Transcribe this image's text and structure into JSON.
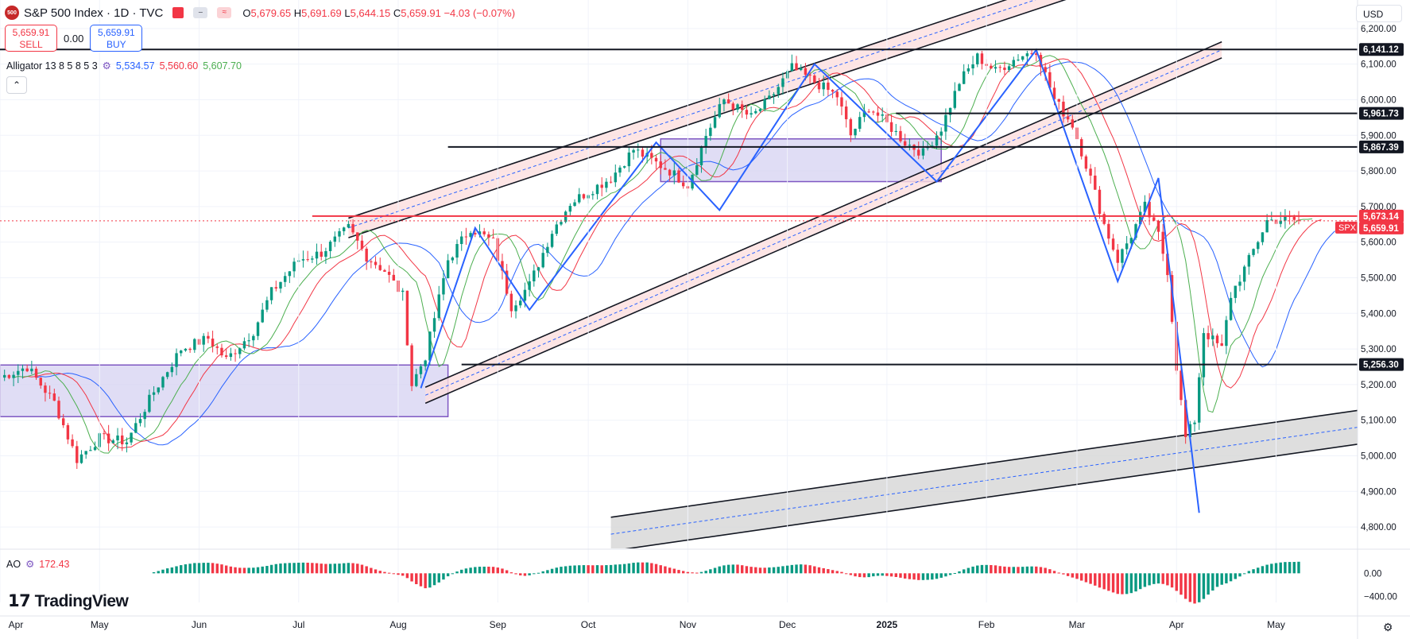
{
  "header": {
    "logo_text": "500",
    "title": "S&P 500 Index · 1D · TVC",
    "ohlc": {
      "o_label": "O",
      "o": "5,679.65",
      "h_label": "H",
      "h": "5,691.69",
      "l_label": "L",
      "l": "5,644.15",
      "c_label": "C",
      "c": "5,659.91",
      "change": "−4.03 (−0.07%)"
    },
    "pill_text": "≈"
  },
  "trade": {
    "sell_price": "5,659.91",
    "sell_label": "SELL",
    "spread": "0.00",
    "buy_price": "5,659.91",
    "buy_label": "BUY"
  },
  "indicators": {
    "alligator": {
      "label": "Alligator 13 8 5 8 5 3",
      "jaw": "5,534.57",
      "teeth": "5,560.60",
      "lips": "5,607.70"
    },
    "ao": {
      "label": "AO",
      "value": "172.43"
    }
  },
  "currency": "USD",
  "branding": "TradingView",
  "colors": {
    "up": "#089981",
    "down": "#f23645",
    "jaw": "#2962ff",
    "teeth": "#f23645",
    "lips": "#4caf50",
    "pattern": "#2962ff",
    "channel_fill": "#fcdede",
    "range_fill": "#d6d1f2",
    "range_border": "#7e57c2"
  },
  "chart_data": {
    "type": "candlestick",
    "title": "S&P 500 Index · 1D · TVC",
    "symbol": "SPX",
    "last_price": 5659.91,
    "ylim": [
      4740,
      6280
    ],
    "y_ticks": [
      4800,
      4900,
      5000,
      5100,
      5200,
      5300,
      5400,
      5500,
      5600,
      5700,
      5800,
      5900,
      6000,
      6100,
      6200
    ],
    "y_tick_labels": [
      "4,800.00",
      "4,900.00",
      "5,000.00",
      "5,100.00",
      "5,200.00",
      "5,300.00",
      "5,400.00",
      "5,500.00",
      "5,600.00",
      "5,700.00",
      "5,800.00",
      "5,900.00",
      "6,000.00",
      "6,100.00",
      "6,200.00"
    ],
    "x_labels": [
      "Apr",
      "May",
      "Jun",
      "Jul",
      "Aug",
      "Sep",
      "Oct",
      "Nov",
      "Dec",
      "2025",
      "Feb",
      "Mar",
      "Apr",
      "May"
    ],
    "x_label_days": [
      0,
      22,
      44,
      66,
      88,
      110,
      130,
      152,
      174,
      196,
      218,
      238,
      260,
      282
    ],
    "total_days": 300,
    "horizontal_levels": [
      {
        "value": 6141.12,
        "label": "6,141.12",
        "from_day": 0
      },
      {
        "value": 5961.73,
        "label": "5,961.73",
        "from_day": 198
      },
      {
        "value": 5867.39,
        "label": "5,867.39",
        "from_day": 99
      },
      {
        "value": 5256.3,
        "label": "5,256.30",
        "from_day": 102
      },
      {
        "value": 5673.14,
        "label": "5,673.14",
        "from_day": 69,
        "color": "red"
      }
    ],
    "last_price_label": "5,659.91",
    "path_anchors": [
      [
        0,
        5220
      ],
      [
        6,
        5250
      ],
      [
        12,
        5150
      ],
      [
        17,
        4990
      ],
      [
        22,
        5050
      ],
      [
        28,
        5040
      ],
      [
        34,
        5180
      ],
      [
        40,
        5300
      ],
      [
        46,
        5330
      ],
      [
        50,
        5270
      ],
      [
        56,
        5350
      ],
      [
        60,
        5460
      ],
      [
        66,
        5550
      ],
      [
        71,
        5570
      ],
      [
        77,
        5640
      ],
      [
        81,
        5560
      ],
      [
        85,
        5520
      ],
      [
        89,
        5450
      ],
      [
        91,
        5200
      ],
      [
        94,
        5280
      ],
      [
        99,
        5550
      ],
      [
        104,
        5640
      ],
      [
        109,
        5600
      ],
      [
        113,
        5420
      ],
      [
        117,
        5480
      ],
      [
        122,
        5630
      ],
      [
        126,
        5710
      ],
      [
        131,
        5750
      ],
      [
        135,
        5780
      ],
      [
        140,
        5860
      ],
      [
        144,
        5830
      ],
      [
        148,
        5800
      ],
      [
        152,
        5760
      ],
      [
        156,
        5900
      ],
      [
        160,
        6000
      ],
      [
        166,
        5950
      ],
      [
        170,
        6000
      ],
      [
        175,
        6090
      ],
      [
        180,
        6050
      ],
      [
        185,
        6010
      ],
      [
        188,
        5900
      ],
      [
        192,
        5980
      ],
      [
        197,
        5920
      ],
      [
        200,
        5880
      ],
      [
        204,
        5850
      ],
      [
        208,
        5920
      ],
      [
        212,
        6050
      ],
      [
        216,
        6120
      ],
      [
        220,
        6080
      ],
      [
        225,
        6120
      ],
      [
        229,
        6140
      ],
      [
        233,
        6000
      ],
      [
        237,
        5930
      ],
      [
        241,
        5780
      ],
      [
        244,
        5650
      ],
      [
        247,
        5550
      ],
      [
        250,
        5620
      ],
      [
        253,
        5700
      ],
      [
        256,
        5620
      ],
      [
        258,
        5520
      ],
      [
        260,
        5250
      ],
      [
        262,
        5050
      ],
      [
        264,
        5100
      ],
      [
        266,
        5350
      ],
      [
        270,
        5300
      ],
      [
        272,
        5450
      ],
      [
        276,
        5550
      ],
      [
        280,
        5660
      ],
      [
        284,
        5665
      ],
      [
        287,
        5660
      ]
    ],
    "channels": [
      {
        "name": "upper-channel",
        "y1_day": 77,
        "y1": 5640,
        "y2_day": 250,
        "y2": 6370,
        "width": 55
      },
      {
        "name": "lower-channel",
        "y1_day": 94,
        "y1": 5170,
        "y2_day": 270,
        "y2": 6140,
        "width": 45
      }
    ],
    "support_channel": {
      "y1_day": 135,
      "y1": 4780,
      "y2_day": 300,
      "y2": 5080,
      "width": 95
    },
    "ranges": [
      {
        "from_day": 0,
        "to_day": 99,
        "low": 5110,
        "high": 5255
      },
      {
        "from_day": 146,
        "to_day": 208,
        "low": 5770,
        "high": 5890
      }
    ],
    "zigzag": [
      [
        93,
        5190
      ],
      [
        105,
        5640
      ],
      [
        117,
        5410
      ],
      [
        145,
        5880
      ],
      [
        159,
        5690
      ],
      [
        180,
        6100
      ],
      [
        207,
        5770
      ],
      [
        229,
        6140
      ],
      [
        247,
        5490
      ],
      [
        256,
        5780
      ],
      [
        265,
        4840
      ]
    ],
    "ao_range": [
      -500,
      400
    ],
    "ao_ticks": [
      0,
      -400
    ],
    "ao_tick_labels": [
      "0.00",
      "−400.00"
    ]
  }
}
